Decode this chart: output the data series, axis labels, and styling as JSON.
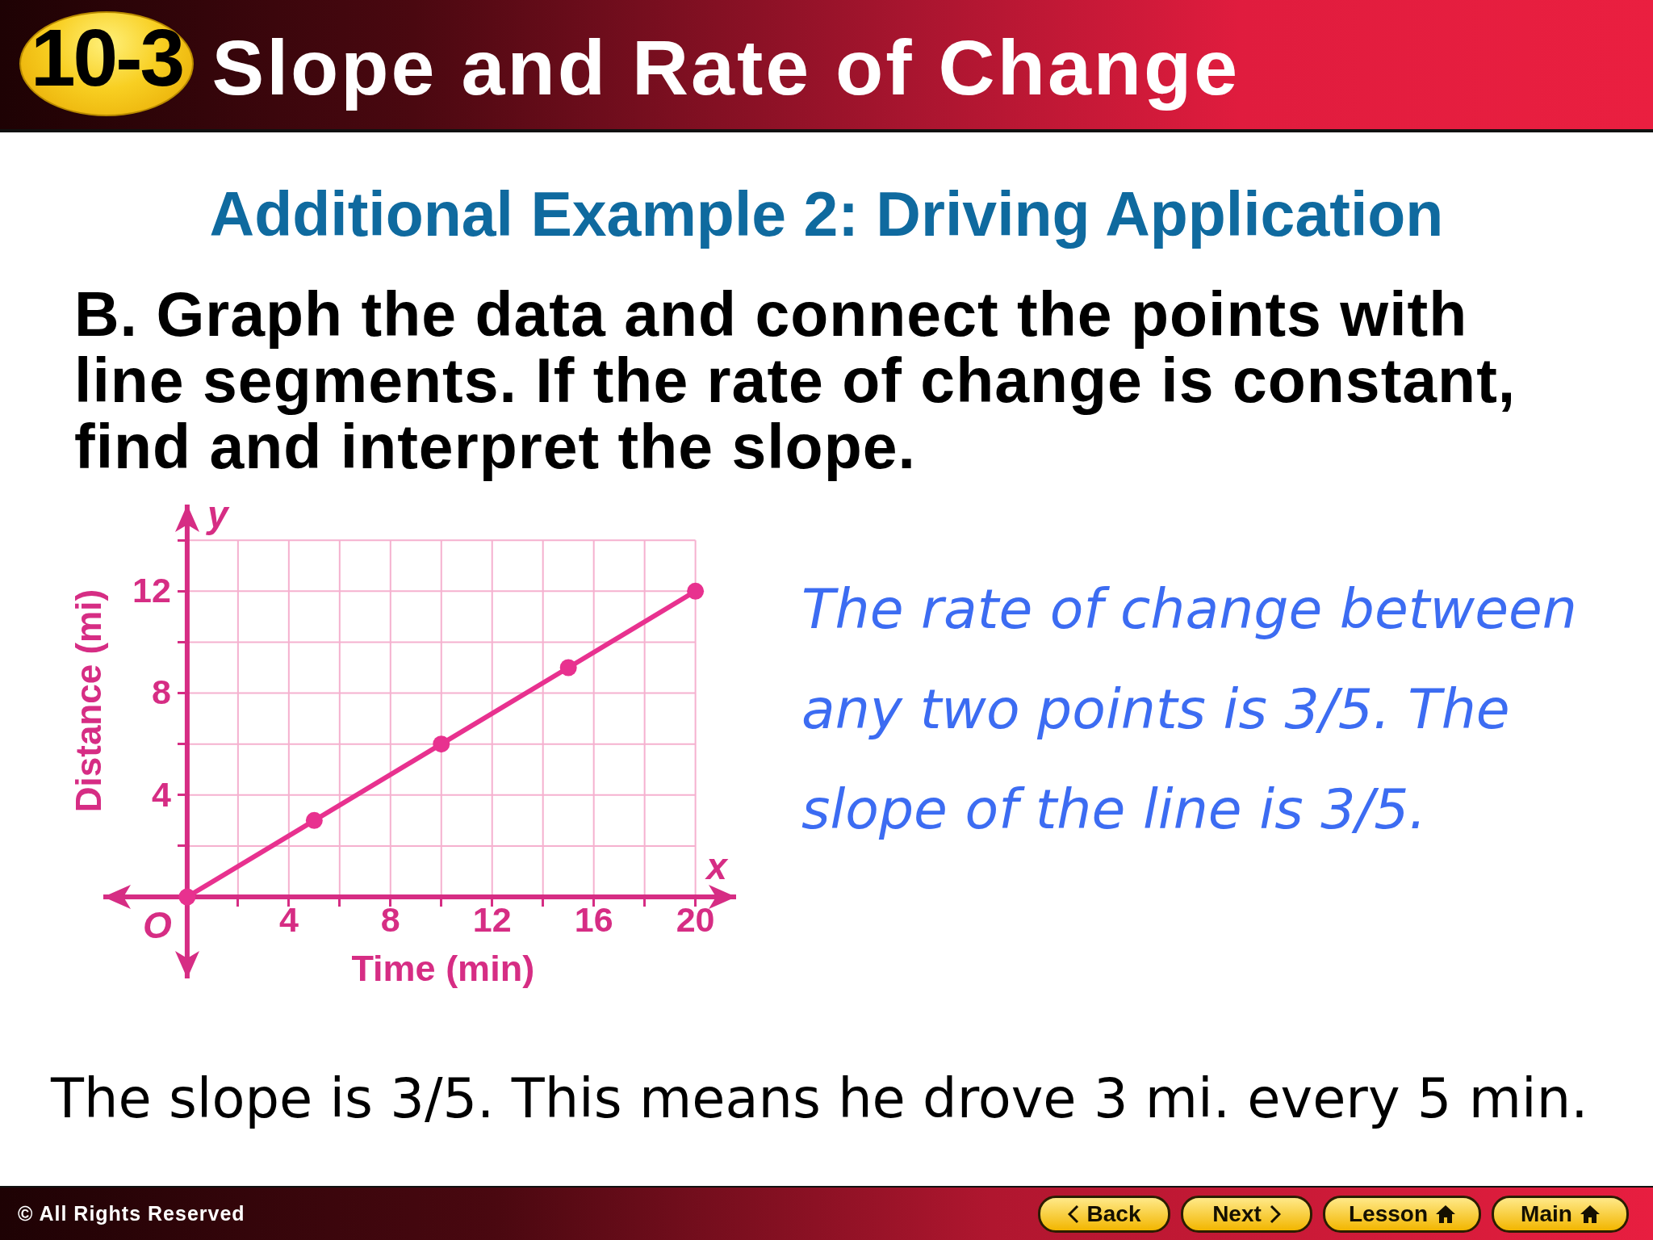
{
  "chart_data": {
    "type": "line",
    "title": "10-3 Slope and Rate of Change",
    "subtitle": "Additional Example 2: Driving Application",
    "xlabel": "Time (min)",
    "ylabel": "Distance (mi)",
    "x": [
      0,
      5,
      10,
      15,
      20
    ],
    "series": [
      {
        "color": "#e8318f",
        "values": [
          0,
          3,
          6,
          9,
          12
        ]
      }
    ],
    "xlim": [
      -3.3,
      21.6
    ],
    "ylim": [
      -3.2,
      15.4
    ],
    "xticks": [
      {
        "value": 2,
        "label": null
      },
      4,
      {
        "value": 6,
        "label": null
      },
      8,
      {
        "value": 10,
        "label": null
      },
      12,
      {
        "value": 14,
        "label": null
      },
      16,
      {
        "value": 18,
        "label": null
      },
      20
    ],
    "yticks": [
      {
        "value": 2,
        "label": null
      },
      4,
      {
        "value": 6,
        "label": null
      },
      8,
      {
        "value": 10,
        "label": null
      },
      12,
      {
        "value": 14,
        "label": null
      }
    ],
    "grid": true,
    "marker": "circle",
    "line_style": "solid",
    "annotations": [
      {
        "text": "O",
        "x": 0,
        "y": 0
      },
      "y",
      "x",
      "B. Graph the data and connect the points with line segments. If the rate of change is constant, find and interpret the slope.",
      "The rate of change between any two points is 3/5. The slope of the line is 3/5.",
      "The slope is 3/5. This means he drove 3 mi. every 5 min.",
      "© All Rights Reserved",
      "Back",
      "Next",
      "Lesson",
      "Main"
    ]
  }
}
